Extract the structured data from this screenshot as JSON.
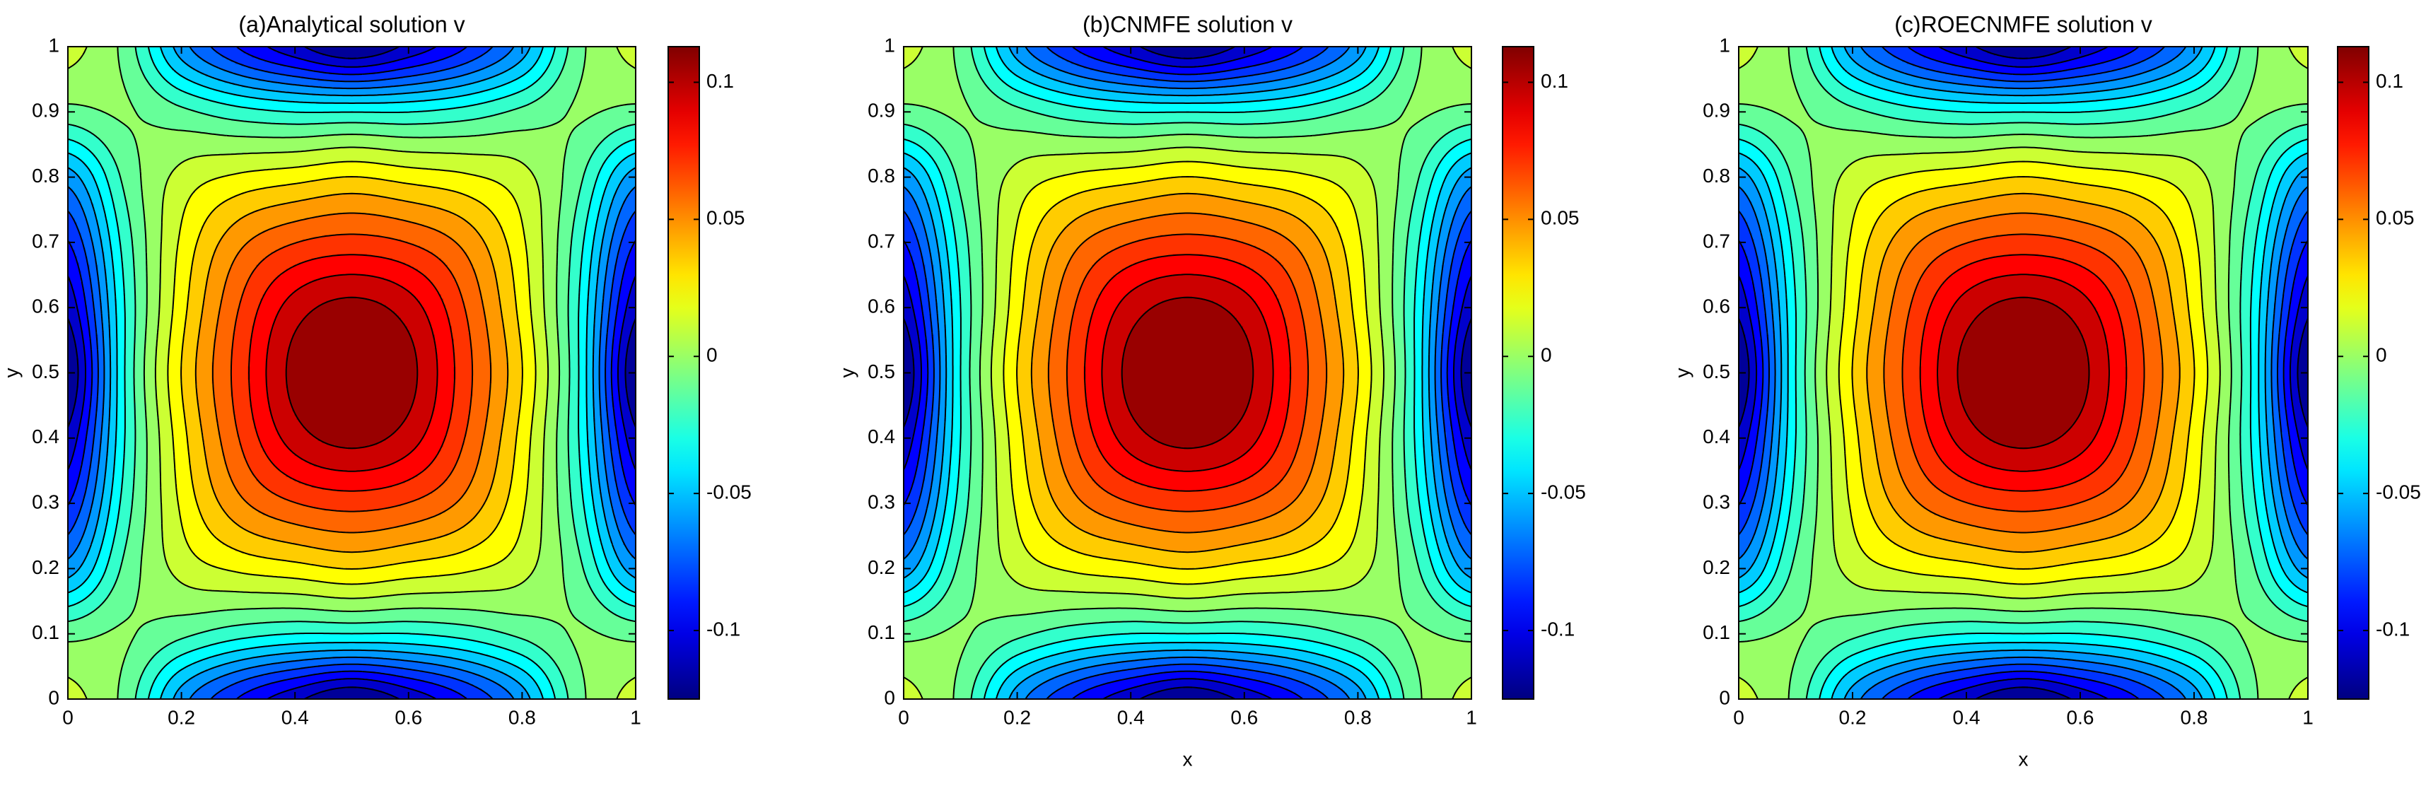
{
  "chart_data": [
    {
      "type": "contour",
      "title": "(a)Analytical solution v",
      "y_label": "y",
      "colormap": "jet",
      "contour_levels": 20,
      "line_color": "#000000",
      "x": [
        0,
        0.1,
        0.2,
        0.3,
        0.4,
        0.5,
        0.6,
        0.7,
        0.8,
        0.9,
        1
      ],
      "y": [
        0,
        0.1,
        0.2,
        0.3,
        0.4,
        0.5,
        0.6,
        0.7,
        0.8,
        0.9,
        1
      ],
      "z": [
        [
          0.01,
          -0.01,
          -0.06,
          -0.09,
          -0.11,
          -0.125,
          -0.11,
          -0.09,
          -0.06,
          -0.01,
          0.01
        ],
        [
          -0.01,
          -0.005,
          -0.015,
          -0.025,
          -0.03,
          -0.03,
          -0.03,
          -0.025,
          -0.015,
          -0.005,
          -0.01
        ],
        [
          -0.06,
          -0.015,
          0.01,
          0.02,
          0.025,
          0.03,
          0.025,
          0.02,
          0.01,
          -0.015,
          -0.06
        ],
        [
          -0.09,
          -0.025,
          0.02,
          0.05,
          0.065,
          0.07,
          0.065,
          0.05,
          0.02,
          -0.025,
          -0.09
        ],
        [
          -0.11,
          -0.03,
          0.025,
          0.065,
          0.095,
          0.105,
          0.095,
          0.065,
          0.025,
          -0.03,
          -0.11
        ],
        [
          -0.125,
          -0.03,
          0.03,
          0.07,
          0.105,
          0.113,
          0.105,
          0.07,
          0.03,
          -0.03,
          -0.125
        ],
        [
          -0.11,
          -0.03,
          0.025,
          0.065,
          0.095,
          0.105,
          0.095,
          0.065,
          0.025,
          -0.03,
          -0.11
        ],
        [
          -0.09,
          -0.025,
          0.02,
          0.05,
          0.065,
          0.07,
          0.065,
          0.05,
          0.02,
          -0.025,
          -0.09
        ],
        [
          -0.06,
          -0.015,
          0.01,
          0.02,
          0.025,
          0.03,
          0.025,
          0.02,
          0.01,
          -0.015,
          -0.06
        ],
        [
          -0.01,
          -0.005,
          -0.015,
          -0.025,
          -0.03,
          -0.03,
          -0.03,
          -0.025,
          -0.015,
          -0.005,
          -0.01
        ],
        [
          0.01,
          -0.01,
          -0.06,
          -0.09,
          -0.11,
          -0.125,
          -0.11,
          -0.09,
          -0.06,
          -0.01,
          0.01
        ]
      ],
      "xlim": [
        0,
        1
      ],
      "ylim": [
        0,
        1
      ],
      "xticks": [
        0,
        0.2,
        0.4,
        0.6,
        0.8,
        1
      ],
      "yticks": [
        0,
        0.1,
        0.2,
        0.3,
        0.4,
        0.5,
        0.6,
        0.7,
        0.8,
        0.9,
        1
      ],
      "clim": [
        -0.125,
        0.113
      ],
      "cticks": [
        -0.1,
        -0.05,
        0,
        0.05,
        0.1
      ]
    },
    {
      "type": "contour",
      "title": "(b)CNMFE solution v",
      "x_label": "x",
      "y_label": "y",
      "colormap": "jet",
      "contour_levels": 20,
      "line_color": "#000000",
      "x": [
        0,
        0.1,
        0.2,
        0.3,
        0.4,
        0.5,
        0.6,
        0.7,
        0.8,
        0.9,
        1
      ],
      "y": [
        0,
        0.1,
        0.2,
        0.3,
        0.4,
        0.5,
        0.6,
        0.7,
        0.8,
        0.9,
        1
      ],
      "z": [
        [
          0.01,
          -0.01,
          -0.06,
          -0.09,
          -0.11,
          -0.125,
          -0.11,
          -0.09,
          -0.06,
          -0.01,
          0.01
        ],
        [
          -0.01,
          -0.005,
          -0.015,
          -0.025,
          -0.03,
          -0.03,
          -0.03,
          -0.025,
          -0.015,
          -0.005,
          -0.01
        ],
        [
          -0.06,
          -0.015,
          0.01,
          0.02,
          0.025,
          0.03,
          0.025,
          0.02,
          0.01,
          -0.015,
          -0.06
        ],
        [
          -0.09,
          -0.025,
          0.02,
          0.05,
          0.065,
          0.07,
          0.065,
          0.05,
          0.02,
          -0.025,
          -0.09
        ],
        [
          -0.11,
          -0.03,
          0.025,
          0.065,
          0.095,
          0.105,
          0.095,
          0.065,
          0.025,
          -0.03,
          -0.11
        ],
        [
          -0.125,
          -0.03,
          0.03,
          0.07,
          0.105,
          0.113,
          0.105,
          0.07,
          0.03,
          -0.03,
          -0.125
        ],
        [
          -0.11,
          -0.03,
          0.025,
          0.065,
          0.095,
          0.105,
          0.095,
          0.065,
          0.025,
          -0.03,
          -0.11
        ],
        [
          -0.09,
          -0.025,
          0.02,
          0.05,
          0.065,
          0.07,
          0.065,
          0.05,
          0.02,
          -0.025,
          -0.09
        ],
        [
          -0.06,
          -0.015,
          0.01,
          0.02,
          0.025,
          0.03,
          0.025,
          0.02,
          0.01,
          -0.015,
          -0.06
        ],
        [
          -0.01,
          -0.005,
          -0.015,
          -0.025,
          -0.03,
          -0.03,
          -0.03,
          -0.025,
          -0.015,
          -0.005,
          -0.01
        ],
        [
          0.01,
          -0.01,
          -0.06,
          -0.09,
          -0.11,
          -0.125,
          -0.11,
          -0.09,
          -0.06,
          -0.01,
          0.01
        ]
      ],
      "xlim": [
        0,
        1
      ],
      "ylim": [
        0,
        1
      ],
      "xticks": [
        0,
        0.2,
        0.4,
        0.6,
        0.8,
        1
      ],
      "yticks": [
        0,
        0.1,
        0.2,
        0.3,
        0.4,
        0.5,
        0.6,
        0.7,
        0.8,
        0.9,
        1
      ],
      "clim": [
        -0.125,
        0.113
      ],
      "cticks": [
        -0.1,
        -0.05,
        0,
        0.05,
        0.1
      ]
    },
    {
      "type": "contour",
      "title": "(c)ROECNMFE solution v",
      "x_label": "x",
      "y_label": "y",
      "colormap": "jet",
      "contour_levels": 20,
      "line_color": "#000000",
      "x": [
        0,
        0.1,
        0.2,
        0.3,
        0.4,
        0.5,
        0.6,
        0.7,
        0.8,
        0.9,
        1
      ],
      "y": [
        0,
        0.1,
        0.2,
        0.3,
        0.4,
        0.5,
        0.6,
        0.7,
        0.8,
        0.9,
        1
      ],
      "z": [
        [
          0.01,
          -0.01,
          -0.06,
          -0.09,
          -0.11,
          -0.125,
          -0.11,
          -0.09,
          -0.06,
          -0.01,
          0.01
        ],
        [
          -0.01,
          -0.005,
          -0.015,
          -0.025,
          -0.03,
          -0.03,
          -0.03,
          -0.025,
          -0.015,
          -0.005,
          -0.01
        ],
        [
          -0.06,
          -0.015,
          0.01,
          0.02,
          0.025,
          0.03,
          0.025,
          0.02,
          0.01,
          -0.015,
          -0.06
        ],
        [
          -0.09,
          -0.025,
          0.02,
          0.05,
          0.065,
          0.07,
          0.065,
          0.05,
          0.02,
          -0.025,
          -0.09
        ],
        [
          -0.11,
          -0.03,
          0.025,
          0.065,
          0.095,
          0.105,
          0.095,
          0.065,
          0.025,
          -0.03,
          -0.11
        ],
        [
          -0.125,
          -0.03,
          0.03,
          0.07,
          0.105,
          0.113,
          0.105,
          0.07,
          0.03,
          -0.03,
          -0.125
        ],
        [
          -0.11,
          -0.03,
          0.025,
          0.065,
          0.095,
          0.105,
          0.095,
          0.065,
          0.025,
          -0.03,
          -0.11
        ],
        [
          -0.09,
          -0.025,
          0.02,
          0.05,
          0.065,
          0.07,
          0.065,
          0.05,
          0.02,
          -0.025,
          -0.09
        ],
        [
          -0.06,
          -0.015,
          0.01,
          0.02,
          0.025,
          0.03,
          0.025,
          0.02,
          0.01,
          -0.015,
          -0.06
        ],
        [
          -0.01,
          -0.005,
          -0.015,
          -0.025,
          -0.03,
          -0.03,
          -0.03,
          -0.025,
          -0.015,
          -0.005,
          -0.01
        ],
        [
          0.01,
          -0.01,
          -0.06,
          -0.09,
          -0.11,
          -0.125,
          -0.11,
          -0.09,
          -0.06,
          -0.01,
          0.01
        ]
      ],
      "xlim": [
        0,
        1
      ],
      "ylim": [
        0,
        1
      ],
      "xticks": [
        0,
        0.2,
        0.4,
        0.6,
        0.8,
        1
      ],
      "yticks": [
        0,
        0.1,
        0.2,
        0.3,
        0.4,
        0.5,
        0.6,
        0.7,
        0.8,
        0.9,
        1
      ],
      "clim": [
        -0.125,
        0.113
      ],
      "cticks": [
        -0.1,
        -0.05,
        0,
        0.05,
        0.1
      ]
    }
  ]
}
